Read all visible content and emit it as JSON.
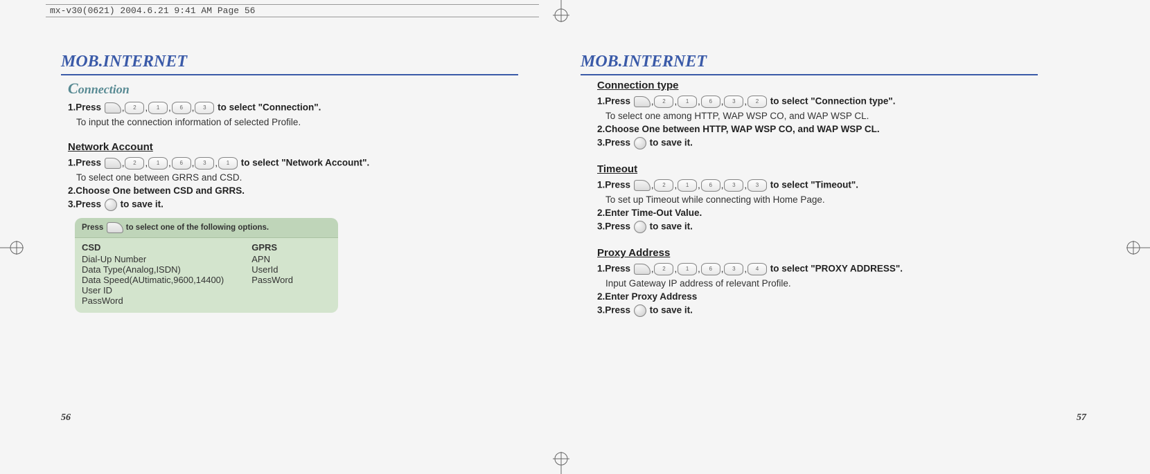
{
  "header": "mx-v30(0621)  2004.6.21  9:41 AM  Page 56",
  "left": {
    "title": "MOB.INTERNET",
    "section_cap": "C",
    "section_rest": "onnection",
    "s1_prefix": "1.Press",
    "s1_keys": [
      "menu",
      "2",
      "1",
      "6",
      "3"
    ],
    "s1_suffix": "to select \"Connection\".",
    "s1_note": "To input the connection information of selected Profile.",
    "net_head": "Network Account",
    "n1_prefix": "1.Press",
    "n1_keys": [
      "menu",
      "2",
      "1",
      "6",
      "3",
      "1"
    ],
    "n1_suffix": "to select \"Network Account\".",
    "n1_note": "To select one between GRRS and CSD.",
    "n2": "2.Choose One between CSD and GRRS.",
    "n3_prefix": "3.Press",
    "n3_suffix": "to save it.",
    "opt_header_a": "Press",
    "opt_header_b": "to select one of the following options.",
    "csd_h": "CSD",
    "csd_lines": [
      "Dial-Up Number",
      "Data Type(Analog,ISDN)",
      "Data Speed(AUtimatic,9600,14400)",
      "User ID",
      "PassWord"
    ],
    "gprs_h": "GPRS",
    "gprs_lines": [
      "APN",
      "UserId",
      "PassWord"
    ],
    "page_num": "56"
  },
  "right": {
    "title": "MOB.INTERNET",
    "ct_head": "Connection type",
    "ct1_prefix": "1.Press",
    "ct1_keys": [
      "menu",
      "2",
      "1",
      "6",
      "3",
      "2"
    ],
    "ct1_suffix": "to select \"Connection type\".",
    "ct1_note": "To select one among HTTP, WAP WSP CO, and WAP WSP CL.",
    "ct2": "2.Choose One between HTTP, WAP WSP CO, and WAP WSP CL.",
    "ct3_prefix": "3.Press",
    "ct3_suffix": "to save it.",
    "to_head": "Timeout",
    "to1_prefix": "1.Press",
    "to1_keys": [
      "menu",
      "2",
      "1",
      "6",
      "3",
      "3"
    ],
    "to1_suffix": "to select \"Timeout\".",
    "to1_note": "To set up Timeout while connecting with Home Page.",
    "to2": "2.Enter Time-Out Value.",
    "to3_prefix": "3.Press",
    "to3_suffix": "to save it.",
    "px_head": "Proxy Address",
    "px1_prefix": "1.Press",
    "px1_keys": [
      "menu",
      "2",
      "1",
      "6",
      "3",
      "4"
    ],
    "px1_suffix": "to select \"PROXY ADDRESS\".",
    "px1_note": "Input Gateway IP address of relevant Profile.",
    "px2": "2.Enter Proxy Address",
    "px3_prefix": "3.Press",
    "px3_suffix": "to save it.",
    "page_num": "57"
  },
  "key_labels": {
    "1": "1",
    "2": "2",
    "3": "3",
    "4": "4",
    "6": "6"
  }
}
